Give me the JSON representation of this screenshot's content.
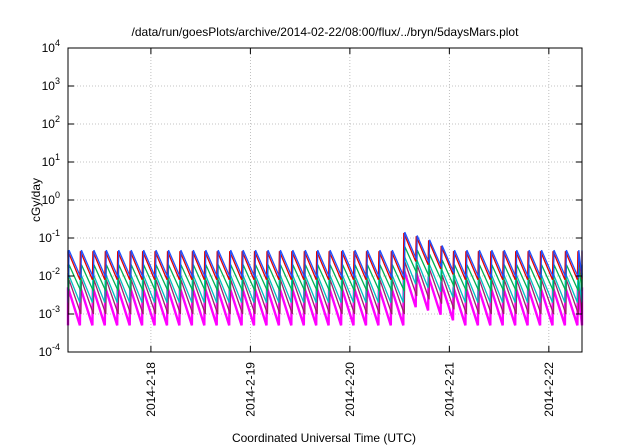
{
  "chart_data": {
    "type": "line",
    "title": "/data/run/goesPlots/archive/2014-02-22/08:00/flux/../bryn/5daysMars.plot",
    "xlabel": "Coordinated Universal Time (UTC)",
    "ylabel": "cGy/day",
    "yscale": "log",
    "ylim": [
      0.0001,
      10000
    ],
    "xlim": [
      "2014-02-17T04:00",
      "2014-02-22T08:00"
    ],
    "y_ticks": [
      {
        "base": "10",
        "exp": "-4",
        "value": 0.0001
      },
      {
        "base": "10",
        "exp": "-3",
        "value": 0.001
      },
      {
        "base": "10",
        "exp": "-2",
        "value": 0.01
      },
      {
        "base": "10",
        "exp": "-1",
        "value": 0.1
      },
      {
        "base": "10",
        "exp": "0",
        "value": 1
      },
      {
        "base": "10",
        "exp": "1",
        "value": 10
      },
      {
        "base": "10",
        "exp": "2",
        "value": 100
      },
      {
        "base": "10",
        "exp": "3",
        "value": 1000
      },
      {
        "base": "10",
        "exp": "4",
        "value": 10000
      }
    ],
    "x_ticks": [
      {
        "label": "2014-2-18",
        "value": "2014-02-18T00:00"
      },
      {
        "label": "2014-2-19",
        "value": "2014-02-19T00:00"
      },
      {
        "label": "2014-2-20",
        "value": "2014-02-20T00:00"
      },
      {
        "label": "2014-2-21",
        "value": "2014-02-21T00:00"
      },
      {
        "label": "2014-2-22",
        "value": "2014-02-22T00:00"
      }
    ],
    "grid": true,
    "sawtooth_period_hours": 3,
    "series": [
      {
        "color": "#ff00ff",
        "peak": 0.005,
        "trough": 0.0005
      },
      {
        "color": "#a0206e",
        "peak": 0.008,
        "trough": 0.001
      },
      {
        "color": "#00c0c0",
        "peak": 0.012,
        "trough": 0.002
      },
      {
        "color": "#00b050",
        "peak": 0.02,
        "trough": 0.004
      },
      {
        "color": "#e00000",
        "peak": 0.045,
        "trough": 0.008
      },
      {
        "color": "#2050ff",
        "peak": 0.048,
        "trough": 0.009
      }
    ],
    "event": {
      "start": "2014-02-20T12:00",
      "end": "2014-02-21T00:00",
      "peak_factor": 3.2
    }
  }
}
